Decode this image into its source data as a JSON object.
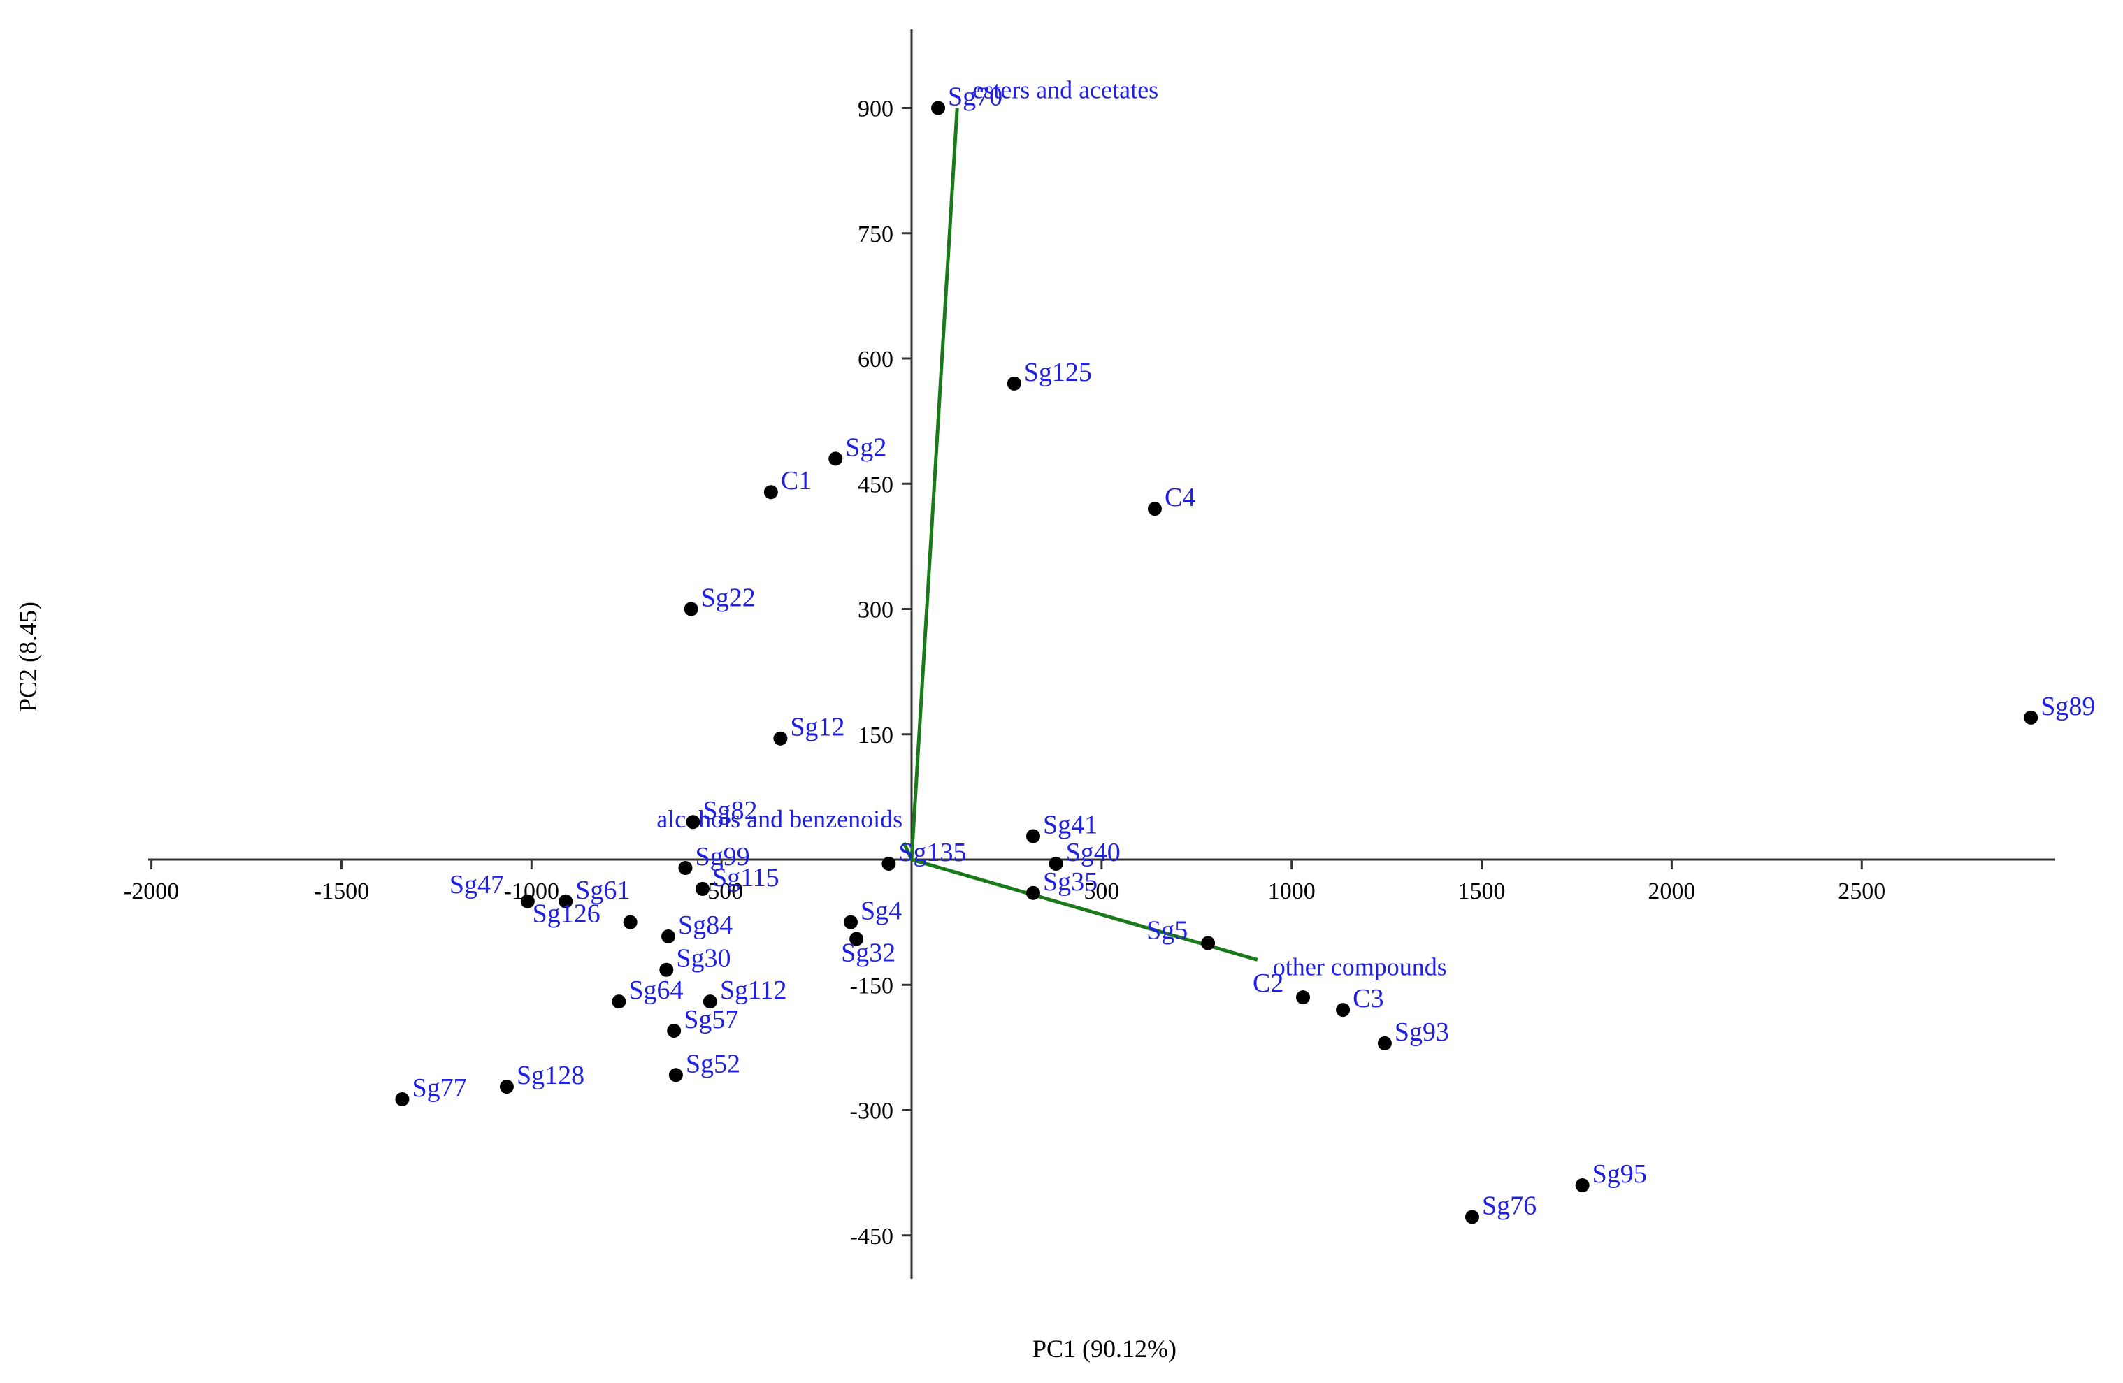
{
  "chart_data": {
    "type": "scatter",
    "title": "",
    "xlabel": "PC1 (90.12%)",
    "ylabel": "PC2 (8.45)",
    "xlim": [
      -2000,
      3000
    ],
    "ylim": [
      -500,
      1000
    ],
    "xticks": [
      -2000,
      -1500,
      -1000,
      -500,
      500,
      1000,
      1500,
      2000,
      2500
    ],
    "xtick_labels": [
      "-2000",
      "-1500",
      "-1000",
      "-500",
      "500",
      "1000",
      "1500",
      "2000",
      "2500"
    ],
    "yticks": [
      900,
      750,
      600,
      450,
      300,
      150,
      -150,
      -300,
      -450
    ],
    "ytick_labels": [
      "900",
      "750",
      "600",
      "450",
      "300",
      "150",
      "-150",
      "-300",
      "-450"
    ],
    "grid": false,
    "points": [
      {
        "label": "Sg70",
        "x": 70,
        "y": 900
      },
      {
        "label": "Sg125",
        "x": 270,
        "y": 570
      },
      {
        "label": "Sg2",
        "x": -200,
        "y": 480
      },
      {
        "label": "C1",
        "x": -370,
        "y": 440
      },
      {
        "label": "C4",
        "x": 640,
        "y": 420
      },
      {
        "label": "Sg22",
        "x": -580,
        "y": 300
      },
      {
        "label": "Sg12",
        "x": -345,
        "y": 145
      },
      {
        "label": "Sg89",
        "x": 2945,
        "y": 170
      },
      {
        "label": "Sg82",
        "x": -575,
        "y": 45
      },
      {
        "label": "Sg41",
        "x": 320,
        "y": 28
      },
      {
        "label": "Sg99",
        "x": -595,
        "y": -10
      },
      {
        "label": "Sg135",
        "x": -60,
        "y": -5
      },
      {
        "label": "Sg40",
        "x": 380,
        "y": -5
      },
      {
        "label": "Sg115",
        "x": -550,
        "y": -35
      },
      {
        "label": "Sg35",
        "x": 320,
        "y": -40
      },
      {
        "label": "Sg47",
        "x": -1010,
        "y": -50
      },
      {
        "label": "Sg61",
        "x": -910,
        "y": -50
      },
      {
        "label": "Sg126",
        "x": -740,
        "y": -75
      },
      {
        "label": "Sg4",
        "x": -160,
        "y": -75
      },
      {
        "label": "Sg32",
        "x": -145,
        "y": -95
      },
      {
        "label": "Sg5",
        "x": 780,
        "y": -100
      },
      {
        "label": "Sg84",
        "x": -640,
        "y": -92
      },
      {
        "label": "Sg30",
        "x": -645,
        "y": -132
      },
      {
        "label": "C2",
        "x": 1030,
        "y": -165
      },
      {
        "label": "C3",
        "x": 1135,
        "y": -180
      },
      {
        "label": "Sg64",
        "x": -770,
        "y": -170
      },
      {
        "label": "Sg112",
        "x": -530,
        "y": -170
      },
      {
        "label": "Sg57",
        "x": -625,
        "y": -205
      },
      {
        "label": "Sg93",
        "x": 1245,
        "y": -220
      },
      {
        "label": "Sg52",
        "x": -620,
        "y": -258
      },
      {
        "label": "Sg128",
        "x": -1065,
        "y": -272
      },
      {
        "label": "Sg77",
        "x": -1340,
        "y": -287
      },
      {
        "label": "Sg95",
        "x": 1765,
        "y": -390
      },
      {
        "label": "Sg76",
        "x": 1475,
        "y": -428
      }
    ],
    "vectors": [
      {
        "name": "esters and acetates",
        "x": 120,
        "y": 900
      },
      {
        "name": "alcohols and benzenoids",
        "x": -20,
        "y": 20
      },
      {
        "name": "other compounds",
        "x": 910,
        "y": -120
      }
    ]
  }
}
